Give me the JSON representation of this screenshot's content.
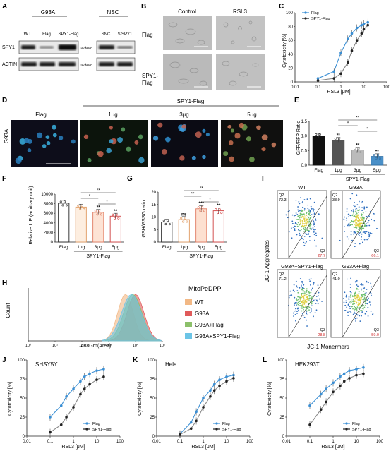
{
  "panels": {
    "A": {
      "letter": "A",
      "groups": [
        "G93A",
        "NSC"
      ],
      "lanes": [
        "WT",
        "Flag",
        "SPY1-Flag",
        "SNC",
        "SiSPY1"
      ],
      "rows": [
        "SPY1",
        "ACTIN"
      ],
      "mw": [
        "-30 kDa-",
        "-40 kDa-",
        "-30 kDa-",
        "-40 kDa-"
      ]
    },
    "B": {
      "letter": "B",
      "cols": [
        "Control",
        "RSL3"
      ],
      "rows": [
        "Flag",
        "SPY1-\nFlag"
      ]
    },
    "C": {
      "letter": "C",
      "ylabel": "Cytotoxicity [%]",
      "xlabel": "RSL3 [μM]",
      "yticks": [
        "0",
        "20",
        "40",
        "60",
        "80",
        "100"
      ],
      "xticks": [
        "0.01",
        "0.1",
        "1",
        "10",
        "100"
      ],
      "legend": [
        {
          "name": "Flag",
          "color": "#3b8fd4"
        },
        {
          "name": "SPY1-Flag",
          "color": "#222222"
        }
      ]
    },
    "D": {
      "letter": "D",
      "bracket": "SPY1-Flag",
      "side": "G93A",
      "cols": [
        "Flag",
        "1μg",
        "3μg",
        "5μg"
      ]
    },
    "E": {
      "letter": "E",
      "ylabel": "GFP/RFP Ratio",
      "yticks": [
        "0.0",
        "0.5",
        "1.0",
        "1.5"
      ],
      "cats": [
        "Flag",
        "1μg",
        "3μg",
        "5μg"
      ],
      "bracket": "SPY1-Flag",
      "stars": [
        "**",
        "**",
        "**"
      ],
      "sig": [
        "**",
        "*",
        "*"
      ]
    },
    "F": {
      "letter": "F",
      "ylabel": "Relative LIP  (arbitrary unit)",
      "yticks": [
        "0",
        "2000",
        "4000",
        "6000",
        "8000",
        "10000"
      ],
      "cats": [
        "Flag",
        "1μg",
        "3μg",
        "5μg"
      ],
      "bracket": "SPY1-Flag",
      "stars": [
        "**",
        "**"
      ],
      "sig": [
        "**",
        "*",
        "*",
        "*"
      ]
    },
    "G": {
      "letter": "G",
      "ylabel": "GSH/GSSG ratio",
      "yticks": [
        "0",
        "5",
        "10",
        "15",
        "20"
      ],
      "cats": [
        "Flag",
        "1μg",
        "3μg",
        "5μg"
      ],
      "bracket": "SPY1-Flag",
      "stars": [
        "ns",
        "***",
        "**"
      ],
      "sig": [
        "**",
        "**",
        "*"
      ]
    },
    "H": {
      "letter": "H",
      "ylabel": "Count",
      "xlabel": "488Grn(Area)",
      "title": "MitoPeDPP",
      "xticks": [
        "10⁰",
        "10¹",
        "10²",
        "10³",
        "10⁴",
        "10⁵"
      ],
      "legend": [
        {
          "name": "WT",
          "color": "#f2b885"
        },
        {
          "name": "G93A",
          "color": "#e05a5a"
        },
        {
          "name": "G93A+Flag",
          "color": "#8cc06a"
        },
        {
          "name": "G93A+SPY1-Flag",
          "color": "#6cc4e6"
        }
      ]
    },
    "I": {
      "letter": "I",
      "ylabel": "JC-1 Aggregates",
      "xlabel": "JC-1 Monermers",
      "plots": [
        {
          "title": "WT",
          "q2": "72.3",
          "q3": "27.7"
        },
        {
          "title": "G93A",
          "q2": "33.9",
          "q3": "66.1"
        },
        {
          "title": "G93A+SPY1-Flag",
          "q2": "71.2",
          "q3": "28.8"
        },
        {
          "title": "G93A+Flag",
          "q2": "41.0",
          "q3": "59.0"
        }
      ],
      "q2label": "Q2",
      "q3label": "Q3"
    },
    "J": {
      "letter": "J",
      "title": "SHSY5Y"
    },
    "K": {
      "letter": "K",
      "title": "Hela"
    },
    "L": {
      "letter": "L",
      "title": "HEK293T"
    },
    "curve": {
      "ylabel": "Cytotoxicity [%]",
      "xlabel": "RSL3 [μM]",
      "yticks": [
        "0",
        "25",
        "50",
        "75",
        "100"
      ],
      "xticks": [
        "0.01",
        "0.1",
        "1",
        "10",
        "100"
      ],
      "legend": [
        {
          "name": "Flag",
          "color": "#3b8fd4"
        },
        {
          "name": "SPY1-Flag",
          "color": "#222222"
        }
      ]
    }
  },
  "chart_data": [
    {
      "type": "line",
      "panel": "C",
      "x": [
        0.1,
        0.5,
        1,
        2,
        3,
        5,
        8,
        10,
        15
      ],
      "series": [
        {
          "name": "Flag",
          "values": [
            5,
            15,
            42,
            62,
            70,
            78,
            82,
            84,
            86
          ]
        },
        {
          "name": "SPY1-Flag",
          "values": [
            2,
            5,
            12,
            28,
            45,
            60,
            70,
            76,
            82
          ]
        }
      ],
      "xlabel": "RSL3 [μM]",
      "ylabel": "Cytotoxicity [%]",
      "ylim": [
        0,
        100
      ]
    },
    {
      "type": "bar",
      "panel": "E",
      "categories": [
        "Flag",
        "1μg",
        "3μg",
        "5μg"
      ],
      "values": [
        1.0,
        0.86,
        0.52,
        0.3
      ],
      "xlabel": "SPY1-Flag",
      "ylabel": "GFP/RFP Ratio",
      "ylim": [
        0,
        1.5
      ]
    },
    {
      "type": "bar",
      "panel": "F",
      "categories": [
        "Flag",
        "1μg",
        "3μg",
        "5μg"
      ],
      "values": [
        8100,
        7300,
        6200,
        5400
      ],
      "xlabel": "SPY1-Flag",
      "ylabel": "Relative LIP  (arbitrary unit)",
      "ylim": [
        0,
        10000
      ]
    },
    {
      "type": "bar",
      "panel": "G",
      "categories": [
        "Flag",
        "1μg",
        "3μg",
        "5μg"
      ],
      "values": [
        8,
        9,
        13.3,
        12.5
      ],
      "xlabel": "SPY1-Flag",
      "ylabel": "GSH/GSSG ratio",
      "ylim": [
        0,
        20
      ]
    },
    {
      "type": "line",
      "panel": "J",
      "title": "SHSY5Y",
      "x": [
        0.1,
        0.3,
        0.5,
        1,
        2,
        3,
        5,
        10,
        20
      ],
      "series": [
        {
          "name": "Flag",
          "values": [
            25,
            40,
            52,
            62,
            72,
            78,
            82,
            86,
            88
          ]
        },
        {
          "name": "SPY1-Flag",
          "values": [
            5,
            15,
            25,
            38,
            55,
            62,
            68,
            74,
            78
          ]
        }
      ],
      "ylim": [
        0,
        100
      ]
    },
    {
      "type": "line",
      "panel": "K",
      "title": "Hela",
      "x": [
        0.1,
        0.3,
        0.5,
        1,
        2,
        3,
        5,
        10,
        20
      ],
      "series": [
        {
          "name": "Flag",
          "values": [
            3,
            18,
            32,
            50,
            60,
            68,
            74,
            78,
            80
          ]
        },
        {
          "name": "SPY1-Flag",
          "values": [
            2,
            10,
            20,
            38,
            52,
            60,
            66,
            72,
            76
          ]
        }
      ],
      "ylim": [
        0,
        100
      ]
    },
    {
      "type": "line",
      "panel": "L",
      "title": "HEK293T",
      "x": [
        0.1,
        0.3,
        0.5,
        1,
        2,
        3,
        5,
        10,
        20
      ],
      "series": [
        {
          "name": "Flag",
          "values": [
            40,
            55,
            62,
            70,
            78,
            82,
            86,
            88,
            90
          ]
        },
        {
          "name": "SPY1-Flag",
          "values": [
            15,
            35,
            45,
            58,
            66,
            72,
            76,
            80,
            82
          ]
        }
      ],
      "ylim": [
        0,
        100
      ]
    }
  ]
}
